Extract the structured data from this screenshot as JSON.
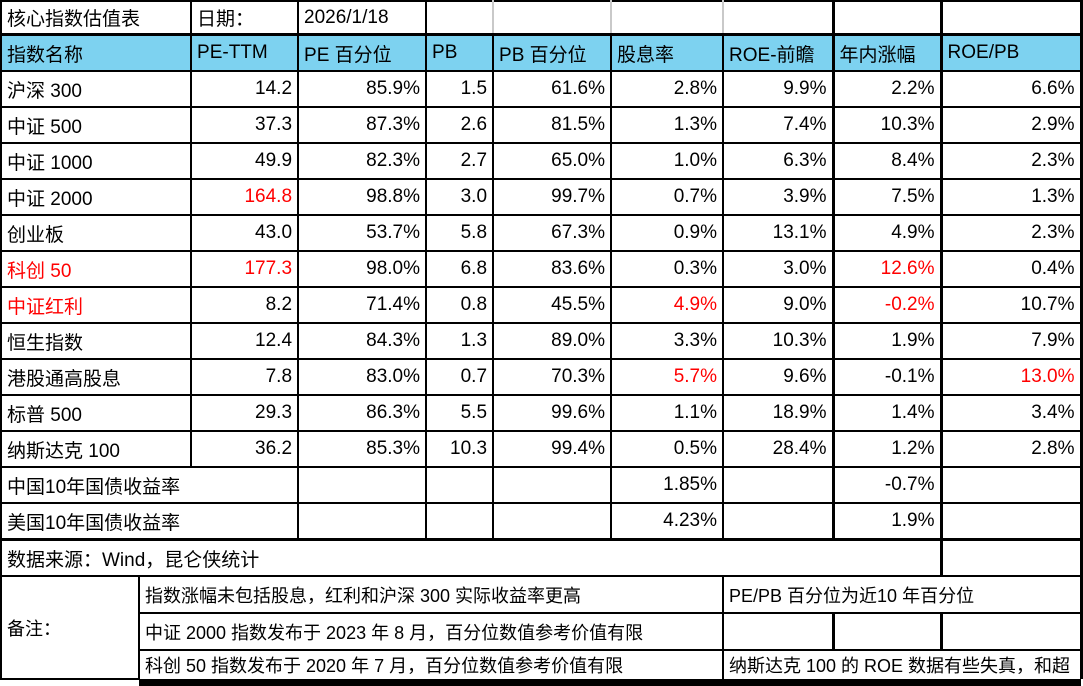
{
  "meta": {
    "title": "核心指数估值表",
    "date_label": "日期：",
    "date_value": "2026/1/18"
  },
  "colors": {
    "header_bg": "#7DD2F0",
    "alert_red": "#FF0000",
    "grid": "#000000",
    "light_grid": "#C9C9C9"
  },
  "columns": [
    "指数名称",
    "PE-TTM",
    "PE 百分位",
    "PB",
    "PB 百分位",
    "股息率",
    "ROE-前瞻",
    "年内涨幅",
    "ROE/PB"
  ],
  "index_rows": [
    {
      "name": "沪深 300",
      "name_red": false,
      "cells": [
        {
          "v": "14.2"
        },
        {
          "v": "85.9%"
        },
        {
          "v": "1.5"
        },
        {
          "v": "61.6%"
        },
        {
          "v": "2.8%"
        },
        {
          "v": "9.9%"
        },
        {
          "v": "2.2%"
        },
        {
          "v": "6.6%"
        }
      ]
    },
    {
      "name": "中证 500",
      "name_red": false,
      "cells": [
        {
          "v": "37.3"
        },
        {
          "v": "87.3%"
        },
        {
          "v": "2.6"
        },
        {
          "v": "81.5%"
        },
        {
          "v": "1.3%"
        },
        {
          "v": "7.4%"
        },
        {
          "v": "10.3%"
        },
        {
          "v": "2.9%"
        }
      ]
    },
    {
      "name": "中证 1000",
      "name_red": false,
      "cells": [
        {
          "v": "49.9"
        },
        {
          "v": "82.3%"
        },
        {
          "v": "2.7"
        },
        {
          "v": "65.0%"
        },
        {
          "v": "1.0%"
        },
        {
          "v": "6.3%"
        },
        {
          "v": "8.4%"
        },
        {
          "v": "2.3%"
        }
      ]
    },
    {
      "name": "中证 2000",
      "name_red": false,
      "cells": [
        {
          "v": "164.8",
          "red": true
        },
        {
          "v": "98.8%"
        },
        {
          "v": "3.0"
        },
        {
          "v": "99.7%"
        },
        {
          "v": "0.7%"
        },
        {
          "v": "3.9%"
        },
        {
          "v": "7.5%"
        },
        {
          "v": "1.3%"
        }
      ]
    },
    {
      "name": "创业板",
      "name_red": false,
      "cells": [
        {
          "v": "43.0"
        },
        {
          "v": "53.7%"
        },
        {
          "v": "5.8"
        },
        {
          "v": "67.3%"
        },
        {
          "v": "0.9%"
        },
        {
          "v": "13.1%"
        },
        {
          "v": "4.9%"
        },
        {
          "v": "2.3%"
        }
      ]
    },
    {
      "name": "科创 50",
      "name_red": true,
      "cells": [
        {
          "v": "177.3",
          "red": true
        },
        {
          "v": "98.0%"
        },
        {
          "v": "6.8"
        },
        {
          "v": "83.6%"
        },
        {
          "v": "0.3%"
        },
        {
          "v": "3.0%"
        },
        {
          "v": "12.6%",
          "red": true
        },
        {
          "v": "0.4%"
        }
      ]
    },
    {
      "name": "中证红利",
      "name_red": true,
      "cells": [
        {
          "v": "8.2"
        },
        {
          "v": "71.4%"
        },
        {
          "v": "0.8"
        },
        {
          "v": "45.5%"
        },
        {
          "v": "4.9%",
          "red": true
        },
        {
          "v": "9.0%"
        },
        {
          "v": "-0.2%",
          "red": true
        },
        {
          "v": "10.7%"
        }
      ]
    },
    {
      "name": "恒生指数",
      "name_red": false,
      "cells": [
        {
          "v": "12.4"
        },
        {
          "v": "84.3%"
        },
        {
          "v": "1.3"
        },
        {
          "v": "89.0%"
        },
        {
          "v": "3.3%"
        },
        {
          "v": "10.3%"
        },
        {
          "v": "1.9%"
        },
        {
          "v": "7.9%"
        }
      ]
    },
    {
      "name": "港股通高股息",
      "name_red": false,
      "cells": [
        {
          "v": "7.8"
        },
        {
          "v": "83.0%"
        },
        {
          "v": "0.7"
        },
        {
          "v": "70.3%"
        },
        {
          "v": "5.7%",
          "red": true
        },
        {
          "v": "9.6%"
        },
        {
          "v": "-0.1%"
        },
        {
          "v": "13.0%",
          "red": true
        }
      ]
    },
    {
      "name": "标普 500",
      "name_red": false,
      "cells": [
        {
          "v": "29.3"
        },
        {
          "v": "86.3%"
        },
        {
          "v": "5.5"
        },
        {
          "v": "99.6%"
        },
        {
          "v": "1.1%"
        },
        {
          "v": "18.9%"
        },
        {
          "v": "1.4%"
        },
        {
          "v": "3.4%"
        }
      ]
    },
    {
      "name": "纳斯达克 100",
      "name_red": false,
      "cells": [
        {
          "v": "36.2"
        },
        {
          "v": "85.3%"
        },
        {
          "v": "10.3"
        },
        {
          "v": "99.4%"
        },
        {
          "v": "0.5%"
        },
        {
          "v": "28.4%"
        },
        {
          "v": "1.2%"
        },
        {
          "v": "2.8%"
        }
      ]
    }
  ],
  "bond_rows": [
    {
      "name": "中国10年国债收益率",
      "dividend_yield": "1.85%",
      "ytd_change": "-0.7%"
    },
    {
      "name": "美国10年国债收益率",
      "dividend_yield": "4.23%",
      "ytd_change": "1.9%"
    }
  ],
  "source_row": {
    "text": "数据来源：Wind，昆仑侠统计"
  },
  "notes": {
    "label": "备注：",
    "rows": [
      {
        "left": "指数涨幅未包括股息，红利和沪深 300 实际收益率更高",
        "right": "PE/PB 百分位为近10 年百分位"
      },
      {
        "left": "中证 2000 指数发布于 2023 年 8 月，百分位数值参考价值有限",
        "right": ""
      },
      {
        "left": "科创 50 指数发布于 2020 年 7 月，百分位数值参考价值有限",
        "right": "纳斯达克 100 的 ROE 数据有些失真，和超"
      }
    ]
  }
}
